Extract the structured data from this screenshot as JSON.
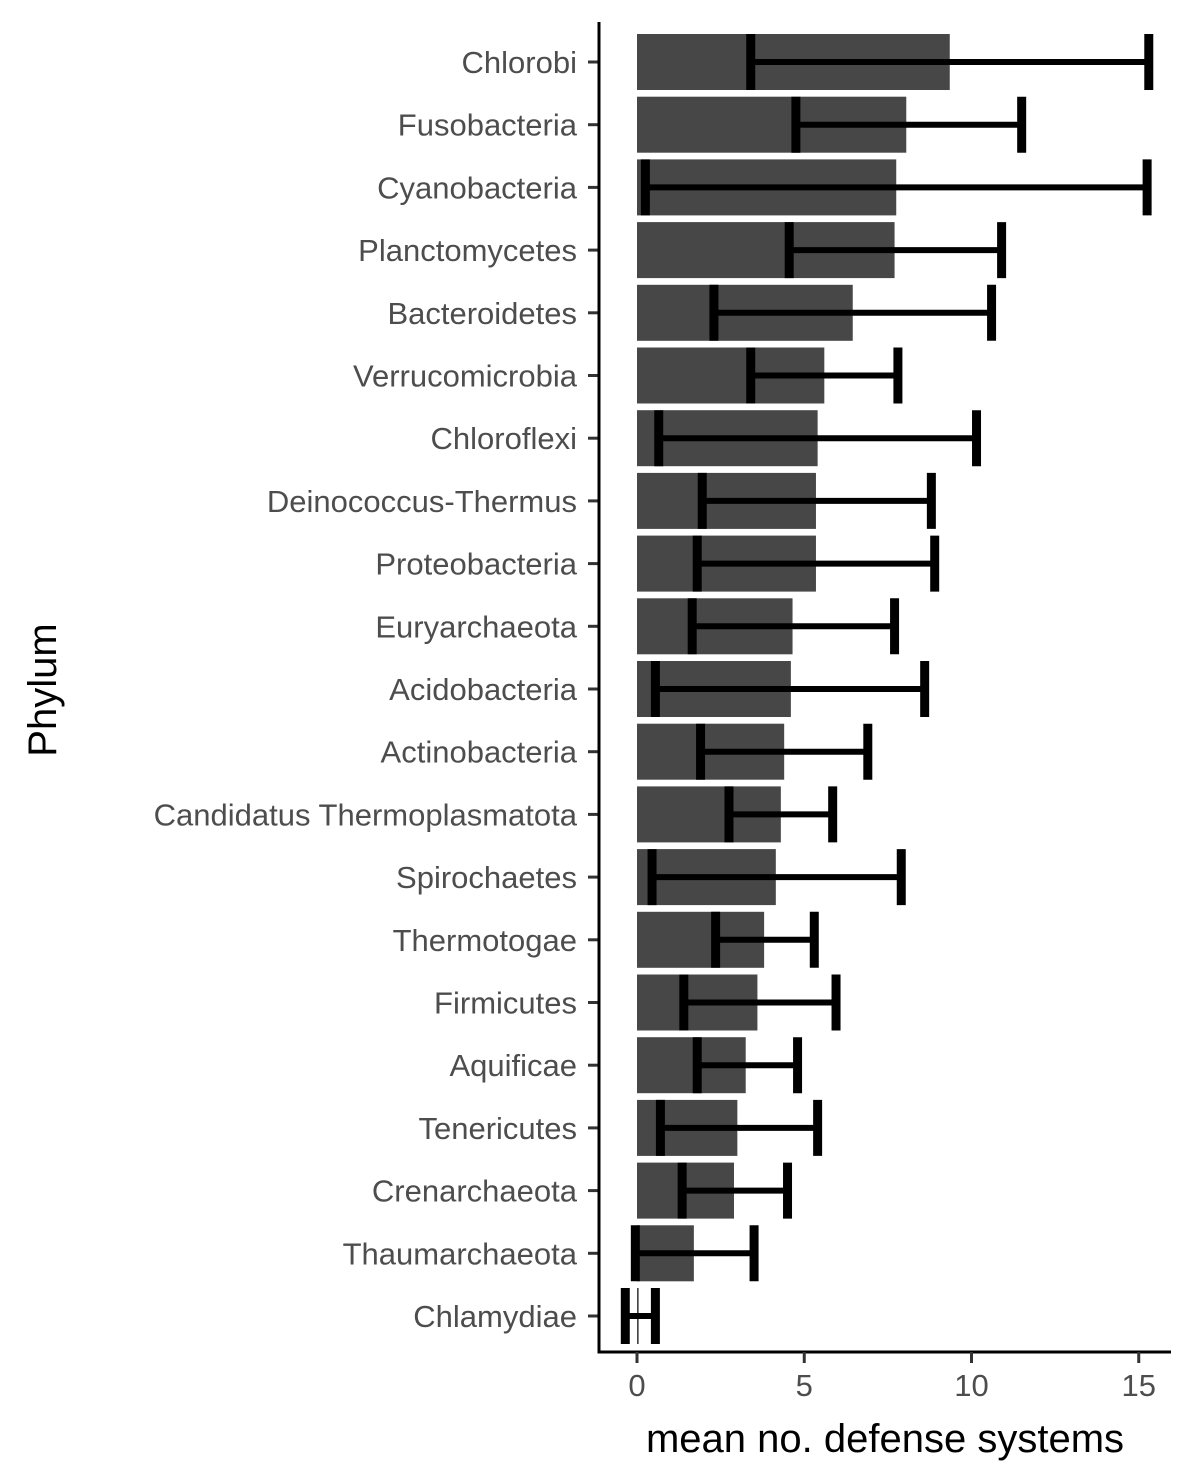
{
  "chart_data": {
    "type": "bar",
    "orientation": "horizontal",
    "title": "",
    "xlabel": "mean no. defense systems",
    "ylabel": "Phylum",
    "xlim": [
      -1.15,
      16
    ],
    "xticks": [
      0,
      5,
      10,
      15
    ],
    "grid": false,
    "legend": "none",
    "bar_color": "#474747",
    "errorbar_color": "#000000",
    "categories": [
      "Chlorobi",
      "Fusobacteria",
      "Cyanobacteria",
      "Planctomycetes",
      "Bacteroidetes",
      "Verrucomicrobia",
      "Chloroflexi",
      "Deinococcus-Thermus",
      "Proteobacteria",
      "Euryarchaeota",
      "Acidobacteria",
      "Actinobacteria",
      "Candidatus Thermoplasmatota",
      "Spirochaetes",
      "Thermotogae",
      "Firmicutes",
      "Aquificae",
      "Tenericutes",
      "Crenarchaeota",
      "Thaumarchaeota",
      "Chlamydiae"
    ],
    "values": [
      9.35,
      8.05,
      7.75,
      7.7,
      6.45,
      5.6,
      5.4,
      5.35,
      5.35,
      4.65,
      4.6,
      4.4,
      4.3,
      4.15,
      3.8,
      3.6,
      3.25,
      3.0,
      2.9,
      1.7,
      0.05
    ],
    "error_low": [
      3.4,
      4.75,
      0.25,
      4.55,
      2.3,
      3.4,
      0.65,
      1.95,
      1.8,
      1.65,
      0.55,
      1.9,
      2.75,
      0.45,
      2.35,
      1.4,
      1.8,
      0.7,
      1.35,
      -0.05,
      -0.35
    ],
    "error_high": [
      15.3,
      11.5,
      15.25,
      10.9,
      10.6,
      7.8,
      10.15,
      8.8,
      8.9,
      7.7,
      8.6,
      6.9,
      5.85,
      7.9,
      5.3,
      5.95,
      4.8,
      5.4,
      4.5,
      3.5,
      0.55
    ]
  }
}
